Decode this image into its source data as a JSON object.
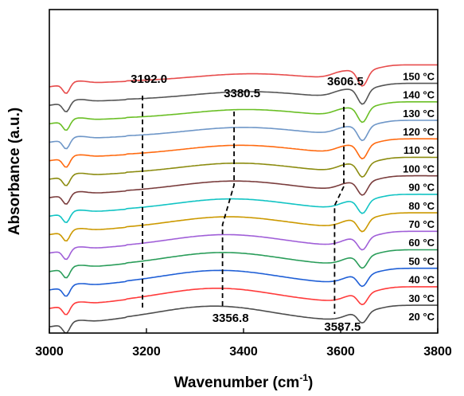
{
  "chart_data": {
    "type": "line",
    "xlabel": "Wavenumber (cm",
    "xlabel_sup": "-1",
    "xlabel_tail": ")",
    "ylabel": "Absorbance (a.u.)",
    "xlim": [
      3000,
      3800
    ],
    "xticks": [
      "3000",
      "3200",
      "3400",
      "3600",
      "3800"
    ],
    "yticks_shown": false,
    "legend": "none",
    "grid": false,
    "series": [
      {
        "name": "20 °C",
        "color": "#4d4d4d",
        "offset": 0,
        "label": "20 °C"
      },
      {
        "name": "30 °C",
        "color": "#ff3b3b",
        "offset": 1,
        "label": "30 °C"
      },
      {
        "name": "40 °C",
        "color": "#1f5fd6",
        "offset": 2,
        "label": "40 °C"
      },
      {
        "name": "50 °C",
        "color": "#2a9d5a",
        "offset": 3,
        "label": "50 °C"
      },
      {
        "name": "60 °C",
        "color": "#a05fd8",
        "offset": 4,
        "label": "60 °C"
      },
      {
        "name": "70 °C",
        "color": "#cc9900",
        "offset": 5,
        "label": "70 °C"
      },
      {
        "name": "80 °C",
        "color": "#12c4c4",
        "offset": 6,
        "label": "80 °C"
      },
      {
        "name": "90 °C",
        "color": "#7a3d3d",
        "offset": 7,
        "label": "90 °C"
      },
      {
        "name": "100 °C",
        "color": "#8c8c10",
        "offset": 8,
        "label": "100 °C"
      },
      {
        "name": "110 °C",
        "color": "#ff6a10",
        "offset": 9,
        "label": "110 °C"
      },
      {
        "name": "120 °C",
        "color": "#6f97c8",
        "offset": 10,
        "label": "120 °C"
      },
      {
        "name": "130 °C",
        "color": "#6abf25",
        "offset": 11,
        "label": "130 °C"
      },
      {
        "name": "140 °C",
        "color": "#555555",
        "offset": 12,
        "label": "140 °C"
      },
      {
        "name": "150 °C",
        "color": "#e74c4c",
        "offset": 13,
        "label": "150 °C"
      }
    ],
    "annotations": [
      {
        "text": "3192.0",
        "x": 3192.0
      },
      {
        "text": "3380.5",
        "x": 3380.5
      },
      {
        "text": "3606.5",
        "x": 3606.5
      },
      {
        "text": "3356.8",
        "x": 3356.8
      },
      {
        "text": "3587.5",
        "x": 3587.5
      }
    ]
  }
}
